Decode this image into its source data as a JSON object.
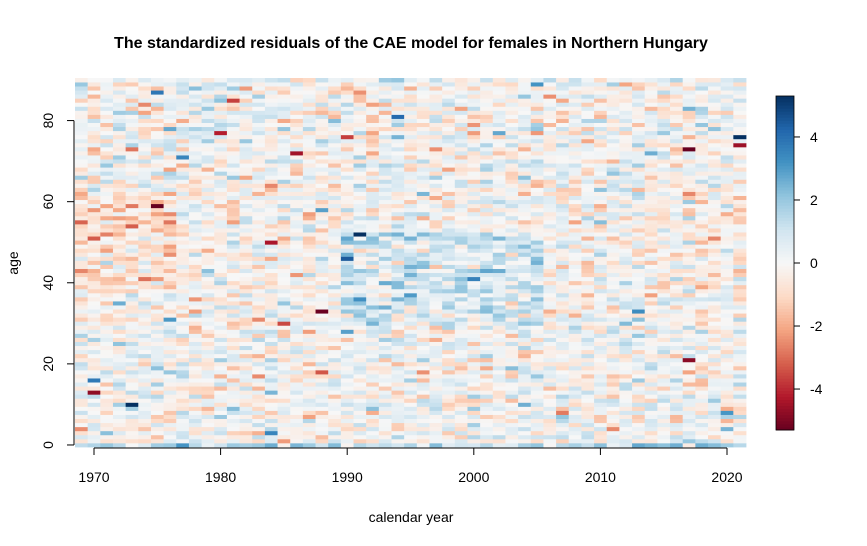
{
  "chart_data": {
    "type": "heatmap",
    "title": "The standardized residuals of the CAE model for females in Northern Hungary",
    "xlabel": "calendar year",
    "ylabel": "age",
    "x_range": [
      1969,
      2021
    ],
    "y_range": [
      0,
      90
    ],
    "x_ticks": [
      "1970",
      "1980",
      "1990",
      "2000",
      "2010",
      "2020"
    ],
    "y_ticks": [
      "0",
      "20",
      "40",
      "60",
      "80"
    ],
    "colorbar": {
      "range": [
        -5.3,
        5.3
      ],
      "ticks": [
        "-4",
        "-2",
        "0",
        "2",
        "4"
      ],
      "palette": [
        "#67001F",
        "#B2182B",
        "#D6604D",
        "#F4A582",
        "#FDDBC7",
        "#F7F7F7",
        "#D1E5F0",
        "#92C5DE",
        "#4393C3",
        "#2166AC",
        "#053061"
      ]
    },
    "grid": false,
    "legend": "colorbar right",
    "pattern_notes": "Residuals mostly within -1 to 1; positive (blue) band at ages 0-1; negative (red) cluster around ages 40-60 in 1970-1976; blue cluster around ages 35-50 in 1990-2005; scattered extremes reaching about -5 and +5."
  }
}
